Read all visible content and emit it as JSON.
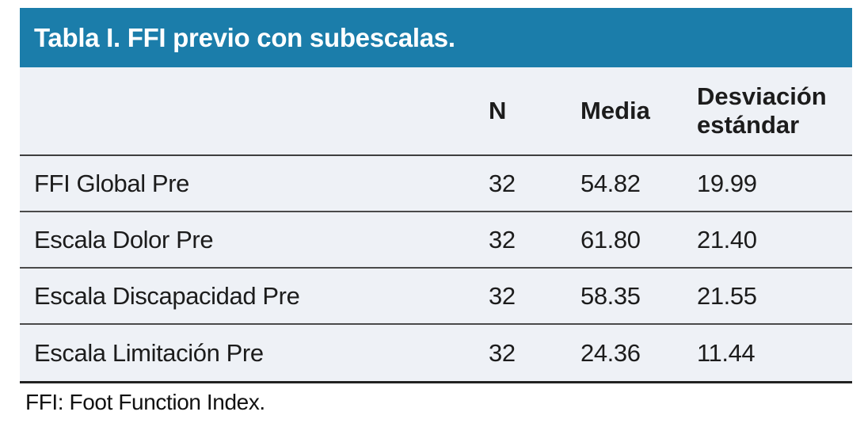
{
  "figure": {
    "title": "Tabla I. FFI previo con subescalas.",
    "footnote": "FFI: Foot Function Index."
  },
  "table": {
    "columns": {
      "variable": "",
      "n": "N",
      "media": "Media",
      "sd": "Desviación estándar"
    },
    "rows": [
      {
        "label": "FFI Global Pre",
        "n": "32",
        "media": "54.82",
        "sd": "19.99"
      },
      {
        "label": "Escala Dolor Pre",
        "n": "32",
        "media": "61.80",
        "sd": "21.40"
      },
      {
        "label": "Escala Discapacidad Pre",
        "n": "32",
        "media": "58.35",
        "sd": "21.55"
      },
      {
        "label": "Escala Limitación Pre",
        "n": "32",
        "media": "24.36",
        "sd": "11.44"
      }
    ]
  },
  "colors": {
    "title_bar": "#1b7daa",
    "title_text": "#ffffff",
    "table_background": "#eef1f6",
    "divider": "#4a4a4a",
    "bottom_border": "#222222",
    "body_text": "#1c1c1c"
  },
  "chart_data": {
    "type": "table",
    "title": "Tabla I. FFI previo con subescalas.",
    "columns": [
      "",
      "N",
      "Media",
      "Desviación estándar"
    ],
    "rows": [
      [
        "FFI Global Pre",
        32,
        54.82,
        19.99
      ],
      [
        "Escala Dolor Pre",
        32,
        61.8,
        21.4
      ],
      [
        "Escala Discapacidad Pre",
        32,
        58.35,
        21.55
      ],
      [
        "Escala Limitación Pre",
        32,
        24.36,
        11.44
      ]
    ],
    "footnote": "FFI: Foot Function Index."
  }
}
